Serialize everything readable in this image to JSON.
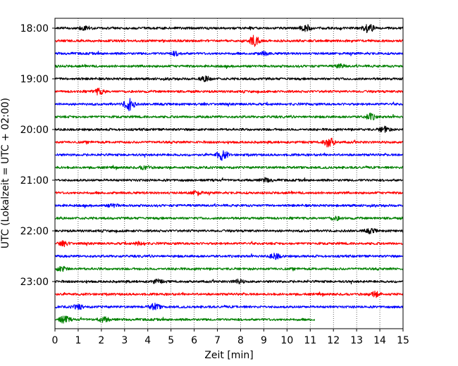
{
  "chart_data": {
    "type": "line",
    "chart_kind": "helicorder",
    "xlabel": "Zeit  [min]",
    "ylabel": "UTC (Lokalzeit = UTC + 02:00)",
    "xlim": [
      0,
      15
    ],
    "x_ticks": [
      0,
      1,
      2,
      3,
      4,
      5,
      6,
      7,
      8,
      9,
      10,
      11,
      12,
      13,
      14,
      15
    ],
    "y_ticks": [
      {
        "label": "18:00",
        "row": 0
      },
      {
        "label": "19:00",
        "row": 4
      },
      {
        "label": "20:00",
        "row": 8
      },
      {
        "label": "21:00",
        "row": 12
      },
      {
        "label": "22:00",
        "row": 16
      },
      {
        "label": "23:00",
        "row": 20
      }
    ],
    "line_minutes_each": 15,
    "grid": "vertical dotted at each minute",
    "trace_colors": [
      "#000000",
      "#ff0000",
      "#0000ff",
      "#008000"
    ],
    "lines": [
      {
        "start": "18:00",
        "color": "#000000",
        "end_minute": 15,
        "events": [
          {
            "t": 1.3,
            "a": 0.35
          },
          {
            "t": 10.8,
            "a": 0.45
          },
          {
            "t": 13.5,
            "a": 0.7
          }
        ]
      },
      {
        "start": "18:15",
        "color": "#ff0000",
        "end_minute": 15,
        "events": [
          {
            "t": 8.6,
            "a": 0.9
          }
        ]
      },
      {
        "start": "18:30",
        "color": "#0000ff",
        "end_minute": 15,
        "events": [
          {
            "t": 5.2,
            "a": 0.3
          },
          {
            "t": 9.0,
            "a": 0.25
          }
        ]
      },
      {
        "start": "18:45",
        "color": "#008000",
        "end_minute": 15,
        "events": [
          {
            "t": 12.3,
            "a": 0.25
          }
        ]
      },
      {
        "start": "19:00",
        "color": "#000000",
        "end_minute": 15,
        "events": [
          {
            "t": 6.5,
            "a": 0.4
          }
        ]
      },
      {
        "start": "19:15",
        "color": "#ff0000",
        "end_minute": 15,
        "events": [
          {
            "t": 1.9,
            "a": 0.5
          }
        ]
      },
      {
        "start": "19:30",
        "color": "#0000ff",
        "end_minute": 15,
        "events": [
          {
            "t": 3.2,
            "a": 1.0
          }
        ]
      },
      {
        "start": "19:45",
        "color": "#008000",
        "end_minute": 15,
        "events": [
          {
            "t": 13.6,
            "a": 0.5
          }
        ]
      },
      {
        "start": "20:00",
        "color": "#000000",
        "end_minute": 15,
        "events": [
          {
            "t": 14.2,
            "a": 0.45
          }
        ]
      },
      {
        "start": "20:15",
        "color": "#ff0000",
        "end_minute": 15,
        "events": [
          {
            "t": 11.8,
            "a": 0.8
          }
        ]
      },
      {
        "start": "20:30",
        "color": "#0000ff",
        "end_minute": 15,
        "events": [
          {
            "t": 7.2,
            "a": 0.8
          }
        ]
      },
      {
        "start": "20:45",
        "color": "#008000",
        "end_minute": 15,
        "events": [
          {
            "t": 3.9,
            "a": 0.3
          }
        ]
      },
      {
        "start": "21:00",
        "color": "#000000",
        "end_minute": 15,
        "events": [
          {
            "t": 9.1,
            "a": 0.3
          }
        ]
      },
      {
        "start": "21:15",
        "color": "#ff0000",
        "end_minute": 15,
        "events": [
          {
            "t": 6.1,
            "a": 0.35
          }
        ]
      },
      {
        "start": "21:30",
        "color": "#0000ff",
        "end_minute": 15,
        "events": [
          {
            "t": 2.5,
            "a": 0.25
          }
        ]
      },
      {
        "start": "21:45",
        "color": "#008000",
        "end_minute": 15,
        "events": [
          {
            "t": 12.1,
            "a": 0.3
          }
        ]
      },
      {
        "start": "22:00",
        "color": "#000000",
        "end_minute": 15,
        "events": [
          {
            "t": 13.6,
            "a": 0.35
          }
        ]
      },
      {
        "start": "22:15",
        "color": "#ff0000",
        "end_minute": 15,
        "events": [
          {
            "t": 0.4,
            "a": 0.35
          },
          {
            "t": 3.7,
            "a": 0.3
          }
        ]
      },
      {
        "start": "22:30",
        "color": "#0000ff",
        "end_minute": 15,
        "events": [
          {
            "t": 9.5,
            "a": 0.45
          }
        ]
      },
      {
        "start": "22:45",
        "color": "#008000",
        "end_minute": 15,
        "events": [
          {
            "t": 0.3,
            "a": 0.4
          }
        ]
      },
      {
        "start": "23:00",
        "color": "#000000",
        "end_minute": 15,
        "events": [
          {
            "t": 4.4,
            "a": 0.3
          },
          {
            "t": 7.9,
            "a": 0.3
          }
        ]
      },
      {
        "start": "23:15",
        "color": "#ff0000",
        "end_minute": 15,
        "events": [
          {
            "t": 13.8,
            "a": 0.4
          }
        ]
      },
      {
        "start": "23:30",
        "color": "#0000ff",
        "end_minute": 15,
        "events": [
          {
            "t": 1.0,
            "a": 0.35
          },
          {
            "t": 4.3,
            "a": 0.5
          }
        ]
      },
      {
        "start": "23:45",
        "color": "#008000",
        "end_minute": 11.2,
        "events": [
          {
            "t": 0.4,
            "a": 0.6
          },
          {
            "t": 2.1,
            "a": 0.4
          }
        ]
      }
    ]
  }
}
